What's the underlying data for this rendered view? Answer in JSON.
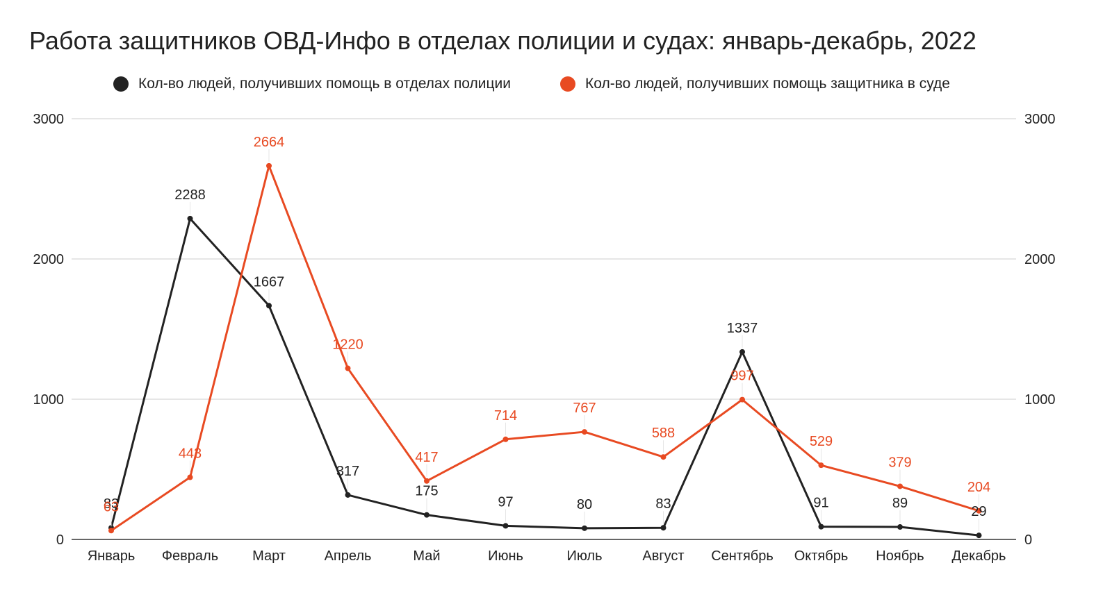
{
  "chart_data": {
    "type": "line",
    "title": "Работа защитников ОВД-Инфо в отделах полиции и судах: январь-декабрь, 2022",
    "categories": [
      "Январь",
      "Февраль",
      "Март",
      "Апрель",
      "Май",
      "Июнь",
      "Июль",
      "Август",
      "Сентябрь",
      "Октябрь",
      "Ноябрь",
      "Декабрь"
    ],
    "series": [
      {
        "name": "Кол-во людей, получивших помощь в отделах полиции",
        "color": "#222222",
        "values": [
          83,
          2288,
          1667,
          317,
          175,
          97,
          80,
          83,
          1337,
          91,
          89,
          29
        ]
      },
      {
        "name": "Кол-во людей, получивших помощь защитника в суде",
        "color": "#e84a22",
        "values": [
          63,
          443,
          2664,
          1220,
          417,
          714,
          767,
          588,
          997,
          529,
          379,
          204
        ]
      }
    ],
    "ylim": [
      0,
      3000
    ],
    "yticks": [
      "0",
      "1000",
      "2000",
      "3000"
    ],
    "y2ticks": [
      "0",
      "1000",
      "2000",
      "3000"
    ],
    "grid": true,
    "legend_position": "top"
  }
}
